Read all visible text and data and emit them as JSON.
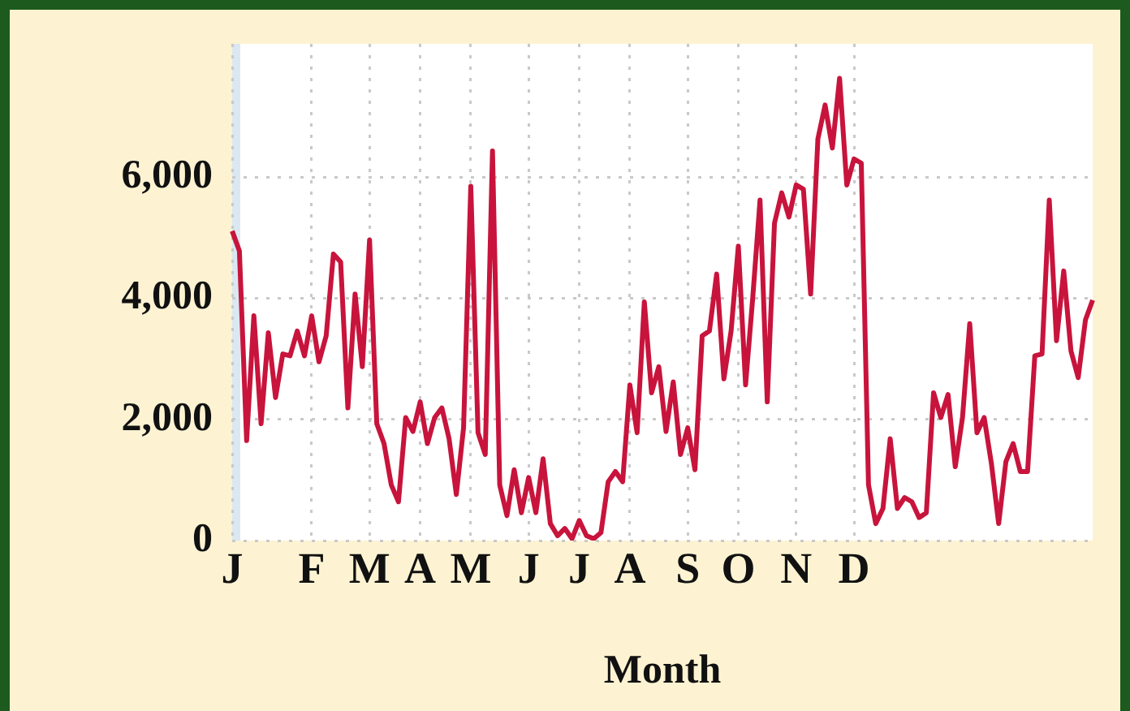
{
  "chart_data": {
    "type": "line",
    "xlabel": "Month",
    "categories": [
      "J",
      null,
      null,
      null,
      null,
      null,
      null,
      null,
      null,
      null,
      null,
      "F",
      null,
      null,
      null,
      null,
      null,
      null,
      null,
      "M",
      null,
      null,
      null,
      null,
      null,
      null,
      "A",
      null,
      null,
      null,
      null,
      null,
      null,
      "M",
      null,
      null,
      null,
      null,
      null,
      null,
      null,
      "J",
      null,
      null,
      null,
      null,
      null,
      null,
      "J",
      null,
      null,
      null,
      null,
      null,
      null,
      "A",
      null,
      null,
      null,
      null,
      null,
      null,
      null,
      "S",
      null,
      null,
      null,
      null,
      null,
      null,
      "O",
      null,
      null,
      null,
      null,
      null,
      null,
      null,
      "N",
      null,
      null,
      null,
      null,
      null,
      null,
      null,
      "D",
      null,
      null,
      null,
      null,
      null,
      null,
      null,
      null,
      null,
      null,
      null,
      null,
      null,
      null,
      null,
      null,
      null,
      null,
      null,
      null,
      null,
      null,
      null,
      null,
      null,
      null,
      null,
      null,
      null,
      null,
      null,
      null,
      null
    ],
    "series": [
      {
        "color": "#c8143c",
        "values": [
          5110,
          4780,
          1650,
          3710,
          1930,
          3430,
          2360,
          3080,
          3050,
          3460,
          3050,
          3710,
          2950,
          3380,
          4730,
          4600,
          2190,
          4070,
          2870,
          4960,
          1930,
          1600,
          920,
          640,
          2030,
          1800,
          2290,
          1600,
          2030,
          2190,
          1680,
          760,
          1860,
          5850,
          1780,
          1420,
          6430,
          920,
          410,
          1170,
          460,
          1040,
          460,
          1350,
          280,
          80,
          200,
          30,
          330,
          80,
          30,
          130,
          970,
          1140,
          970,
          2570,
          1780,
          3940,
          2440,
          2870,
          1800,
          2620,
          1420,
          1860,
          1170,
          3380,
          3460,
          4400,
          2670,
          3460,
          4860,
          2570,
          4020,
          5620,
          2290,
          5240,
          5740,
          5340,
          5870,
          5800,
          4070,
          6630,
          7190,
          6480,
          7630,
          5870,
          6300,
          6230,
          920,
          280,
          530,
          1680,
          530,
          710,
          640,
          380,
          460,
          2440,
          2030,
          2410,
          1220,
          2030,
          3580,
          1780,
          2030,
          1270,
          280,
          1300,
          1600,
          1140,
          1140,
          3050,
          3080,
          5620,
          3300,
          4450,
          3130,
          2690,
          3640,
          3970
        ]
      }
    ],
    "ylim": [
      0,
      8200
    ],
    "yticks": [
      0,
      {
        "value": 2000,
        "label": "2,000"
      },
      {
        "value": 4000,
        "label": "4,000"
      },
      {
        "value": 6000,
        "label": "6,000"
      }
    ],
    "grid": true
  }
}
